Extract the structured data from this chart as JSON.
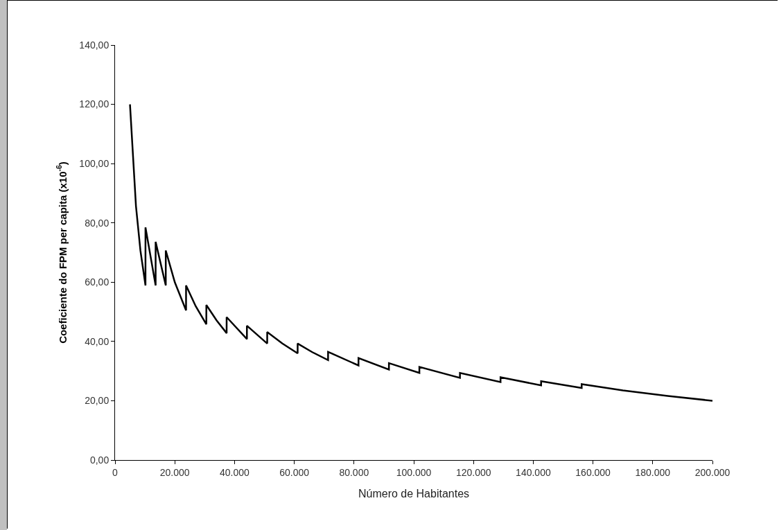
{
  "chart_data": {
    "type": "line",
    "xlabel": "Número de Habitantes",
    "ylabel": "Coeficiente do FPM per capita (x10$^{-6}$)",
    "x": [
      5000,
      7000,
      8500,
      10188,
      10188,
      13584,
      13584,
      16980,
      16980,
      20000,
      23772,
      23772,
      27000,
      30564,
      30564,
      34000,
      37356,
      37356,
      44148,
      44148,
      50940,
      50940,
      56000,
      61128,
      61128,
      66000,
      71316,
      71316,
      81504,
      81504,
      91692,
      91692,
      101880,
      101880,
      115464,
      115464,
      129048,
      129048,
      142632,
      142632,
      156216,
      156216,
      170000,
      185000,
      200000
    ],
    "series": [
      {
        "color": "#000000",
        "values": [
          120.0,
          85.7,
          70.6,
          58.9,
          78.5,
          58.9,
          73.6,
          58.9,
          70.7,
          60.0,
          50.5,
          58.9,
          51.9,
          45.8,
          52.3,
          47.1,
          42.8,
          48.2,
          40.8,
          45.3,
          39.3,
          43.2,
          39.3,
          36.0,
          39.3,
          36.4,
          33.7,
          36.5,
          31.9,
          34.4,
          30.5,
          32.7,
          29.4,
          31.4,
          27.7,
          29.4,
          26.3,
          27.9,
          25.2,
          26.6,
          24.3,
          25.6,
          23.5,
          21.6,
          20.0
        ]
      }
    ],
    "xlim": [
      0,
      200000
    ],
    "xticks": [
      0,
      {
        "value": 20000,
        "label": "20.000"
      },
      {
        "value": 40000,
        "label": "40.000"
      },
      {
        "value": 60000,
        "label": "60.000"
      },
      {
        "value": 80000,
        "label": "80.000"
      },
      {
        "value": 100000,
        "label": "100.000"
      },
      {
        "value": 120000,
        "label": "120.000"
      },
      {
        "value": 140000,
        "label": "140.000"
      },
      {
        "value": 160000,
        "label": "160.000"
      },
      {
        "value": 180000,
        "label": "180.000"
      },
      {
        "value": 200000,
        "label": "200.000"
      }
    ],
    "ylim": [
      0,
      140
    ],
    "yticks": [
      {
        "value": 0,
        "label": "0,00"
      },
      {
        "value": 20,
        "label": "20,00"
      },
      {
        "value": 40,
        "label": "40,00"
      },
      {
        "value": 60,
        "label": "60,00"
      },
      {
        "value": 80,
        "label": "80,00"
      },
      {
        "value": 100,
        "label": "100,00"
      },
      {
        "value": 120,
        "label": "120,00"
      },
      {
        "value": 140,
        "label": "140,00"
      }
    ],
    "grid": false,
    "marker": "none",
    "line_style": "solid"
  }
}
